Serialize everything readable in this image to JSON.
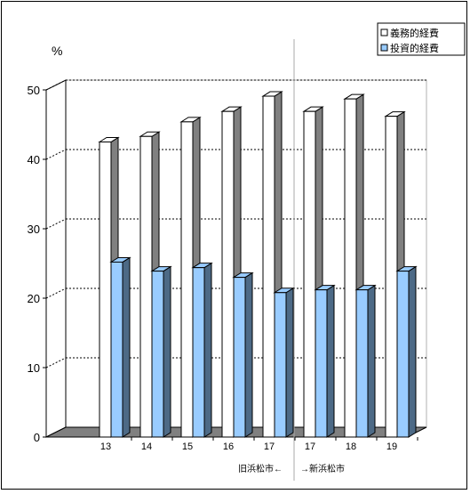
{
  "chart_data": {
    "type": "bar",
    "title": "",
    "ylabel": "%",
    "xlabel": "",
    "ylim": [
      0,
      50
    ],
    "yticks": [
      0,
      10,
      20,
      30,
      40,
      50
    ],
    "grid": true,
    "legend_position": "top-right",
    "categories": [
      "13",
      "14",
      "15",
      "16",
      "17",
      "17",
      "18",
      "19"
    ],
    "series": [
      {
        "name": "義務的経費",
        "values": [
          42.5,
          43.3,
          45.4,
          46.9,
          49.1,
          46.9,
          48.7,
          46.2
        ],
        "color": "#ffffff",
        "side_color": "#808080"
      },
      {
        "name": "投資的経費",
        "values": [
          25.2,
          23.9,
          24.4,
          23.0,
          20.8,
          21.2,
          21.2,
          23.9
        ],
        "color": "#99ccff",
        "side_color": "#4d6a86"
      }
    ],
    "annotations": {
      "old_city": "旧浜松市←",
      "new_city": "→新浜松市"
    }
  },
  "colors": {
    "grid_line": "#000000",
    "floor": "#808080",
    "divider": "#aaaaaa",
    "outline": "#000000"
  }
}
